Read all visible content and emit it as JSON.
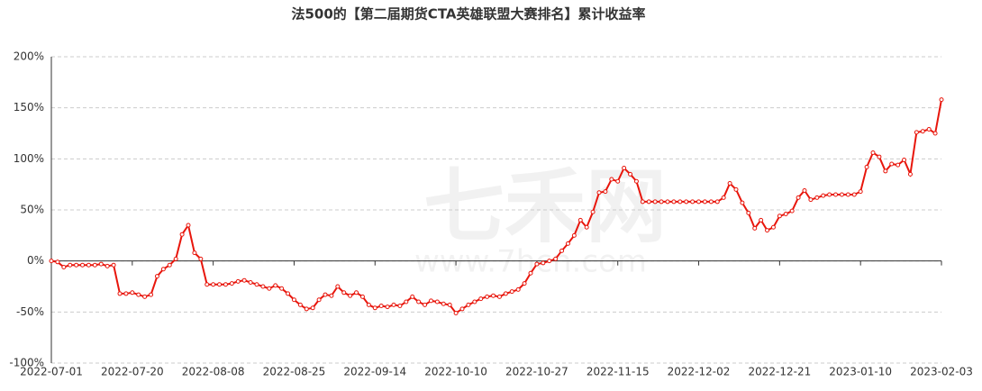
{
  "chart_data": {
    "type": "line",
    "title": "法500的【第二届期货CTA英雄联盟大赛排名】累计收益率",
    "watermark": "七禾网",
    "watermark_url": "www.7hcn.com",
    "color": "#e8160c",
    "grid": true,
    "ylim": [
      -100,
      200
    ],
    "yticks": [
      {
        "value": -100,
        "label": "-100%"
      },
      {
        "value": -50,
        "label": "-50%"
      },
      {
        "value": 0,
        "label": "0%"
      },
      {
        "value": 50,
        "label": "50%"
      },
      {
        "value": 100,
        "label": "100%"
      },
      {
        "value": 150,
        "label": "150%"
      },
      {
        "value": 200,
        "label": "200%"
      }
    ],
    "categories": [
      "2022-07-01",
      null,
      null,
      null,
      null,
      null,
      null,
      null,
      null,
      null,
      null,
      null,
      null,
      "2022-07-20",
      null,
      null,
      null,
      null,
      null,
      null,
      null,
      null,
      null,
      null,
      null,
      null,
      "2022-08-08",
      null,
      null,
      null,
      null,
      null,
      null,
      null,
      null,
      null,
      null,
      null,
      null,
      "2022-08-25",
      null,
      null,
      null,
      null,
      null,
      null,
      null,
      null,
      null,
      null,
      null,
      null,
      "2022-09-14",
      null,
      null,
      null,
      null,
      null,
      null,
      null,
      null,
      null,
      null,
      null,
      null,
      "2022-10-10",
      null,
      null,
      null,
      null,
      null,
      null,
      null,
      null,
      null,
      null,
      null,
      null,
      "2022-10-27",
      null,
      null,
      null,
      null,
      null,
      null,
      null,
      null,
      null,
      null,
      null,
      null,
      "2022-11-15",
      null,
      null,
      null,
      null,
      null,
      null,
      null,
      null,
      null,
      null,
      null,
      null,
      "2022-12-02",
      null,
      null,
      null,
      null,
      null,
      null,
      null,
      null,
      null,
      null,
      null,
      null,
      "2022-12-21",
      null,
      null,
      null,
      null,
      null,
      null,
      null,
      null,
      null,
      null,
      null,
      null,
      "2023-01-10",
      null,
      null,
      null,
      null,
      null,
      null,
      null,
      null,
      null,
      null,
      null,
      null,
      "2023-02-03"
    ],
    "values": [
      0,
      -1,
      -6,
      -4,
      -4,
      -4,
      -4,
      -4,
      -3,
      -5,
      -4,
      -32,
      -32,
      -31,
      -33,
      -35,
      -33,
      -15,
      -8,
      -4,
      2,
      26,
      35,
      8,
      2,
      -23,
      -23,
      -23,
      -23,
      -22,
      -20,
      -19,
      -21,
      -23,
      -25,
      -27,
      -24,
      -27,
      -32,
      -38,
      -43,
      -47,
      -46,
      -38,
      -33,
      -34,
      -25,
      -31,
      -34,
      -31,
      -35,
      -43,
      -46,
      -44,
      -45,
      -43,
      -44,
      -40,
      -35,
      -40,
      -43,
      -39,
      -40,
      -42,
      -43,
      -51,
      -47,
      -43,
      -40,
      -37,
      -35,
      -34,
      -35,
      -32,
      -30,
      -28,
      -22,
      -12,
      -3,
      -2,
      0,
      2,
      10,
      17,
      25,
      40,
      33,
      48,
      67,
      68,
      80,
      78,
      91,
      85,
      78,
      58,
      58,
      58,
      58,
      58,
      58,
      58,
      58,
      58,
      58,
      58,
      58,
      58,
      62,
      76,
      70,
      57,
      47,
      32,
      40,
      30,
      33,
      44,
      46,
      49,
      62,
      69,
      60,
      62,
      64,
      65,
      65,
      65,
      65,
      65,
      68,
      92,
      106,
      102,
      88,
      95,
      94,
      99,
      85,
      126,
      127,
      129,
      125,
      158
    ]
  }
}
